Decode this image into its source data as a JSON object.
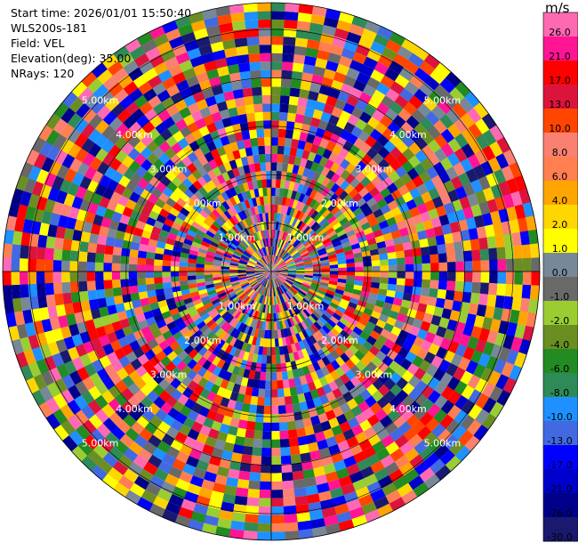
{
  "info": {
    "start_time": "Start time: 2026/01/01 15:50:40",
    "instrument": "WLS200s-181",
    "field": "Field: VEL",
    "elevation": "Elevation(deg): 35.00",
    "nrays": "NRays: 120"
  },
  "colorbar": {
    "unit": "m/s",
    "ticks": [
      "26.0",
      "21.0",
      "17.0",
      "13.0",
      "10.0",
      "8.0",
      "6.0",
      "4.0",
      "2.0",
      "1.0",
      "0.0",
      "-1.0",
      "-2.0",
      "-4.0",
      "-6.0",
      "-8.0",
      "-10.0",
      "-13.0",
      "-17.0",
      "-21.0",
      "-26.0",
      "-30.0"
    ],
    "colors": [
      "#ff69b4",
      "#ff1493",
      "#ff0000",
      "#dc143c",
      "#ff4500",
      "#fa8072",
      "#ff7f50",
      "#ffa500",
      "#ffd700",
      "#ffff00",
      "#778899",
      "#696969",
      "#9acd32",
      "#6b8e23",
      "#228b22",
      "#2e8b57",
      "#1e90ff",
      "#4169e1",
      "#0000ff",
      "#0000cd",
      "#00008b",
      "#191970"
    ]
  },
  "chart_data": {
    "type": "heatmap",
    "projection": "polar",
    "field": "VEL",
    "unit": "m/s",
    "nrays": 120,
    "elevation_deg": 35.0,
    "range_labels": [
      "1.00km",
      "2.00km",
      "3.00km",
      "4.00km",
      "5.00km"
    ],
    "range_rings_km": [
      1,
      2,
      3,
      4,
      5
    ],
    "value_range": [
      -30,
      26
    ]
  }
}
